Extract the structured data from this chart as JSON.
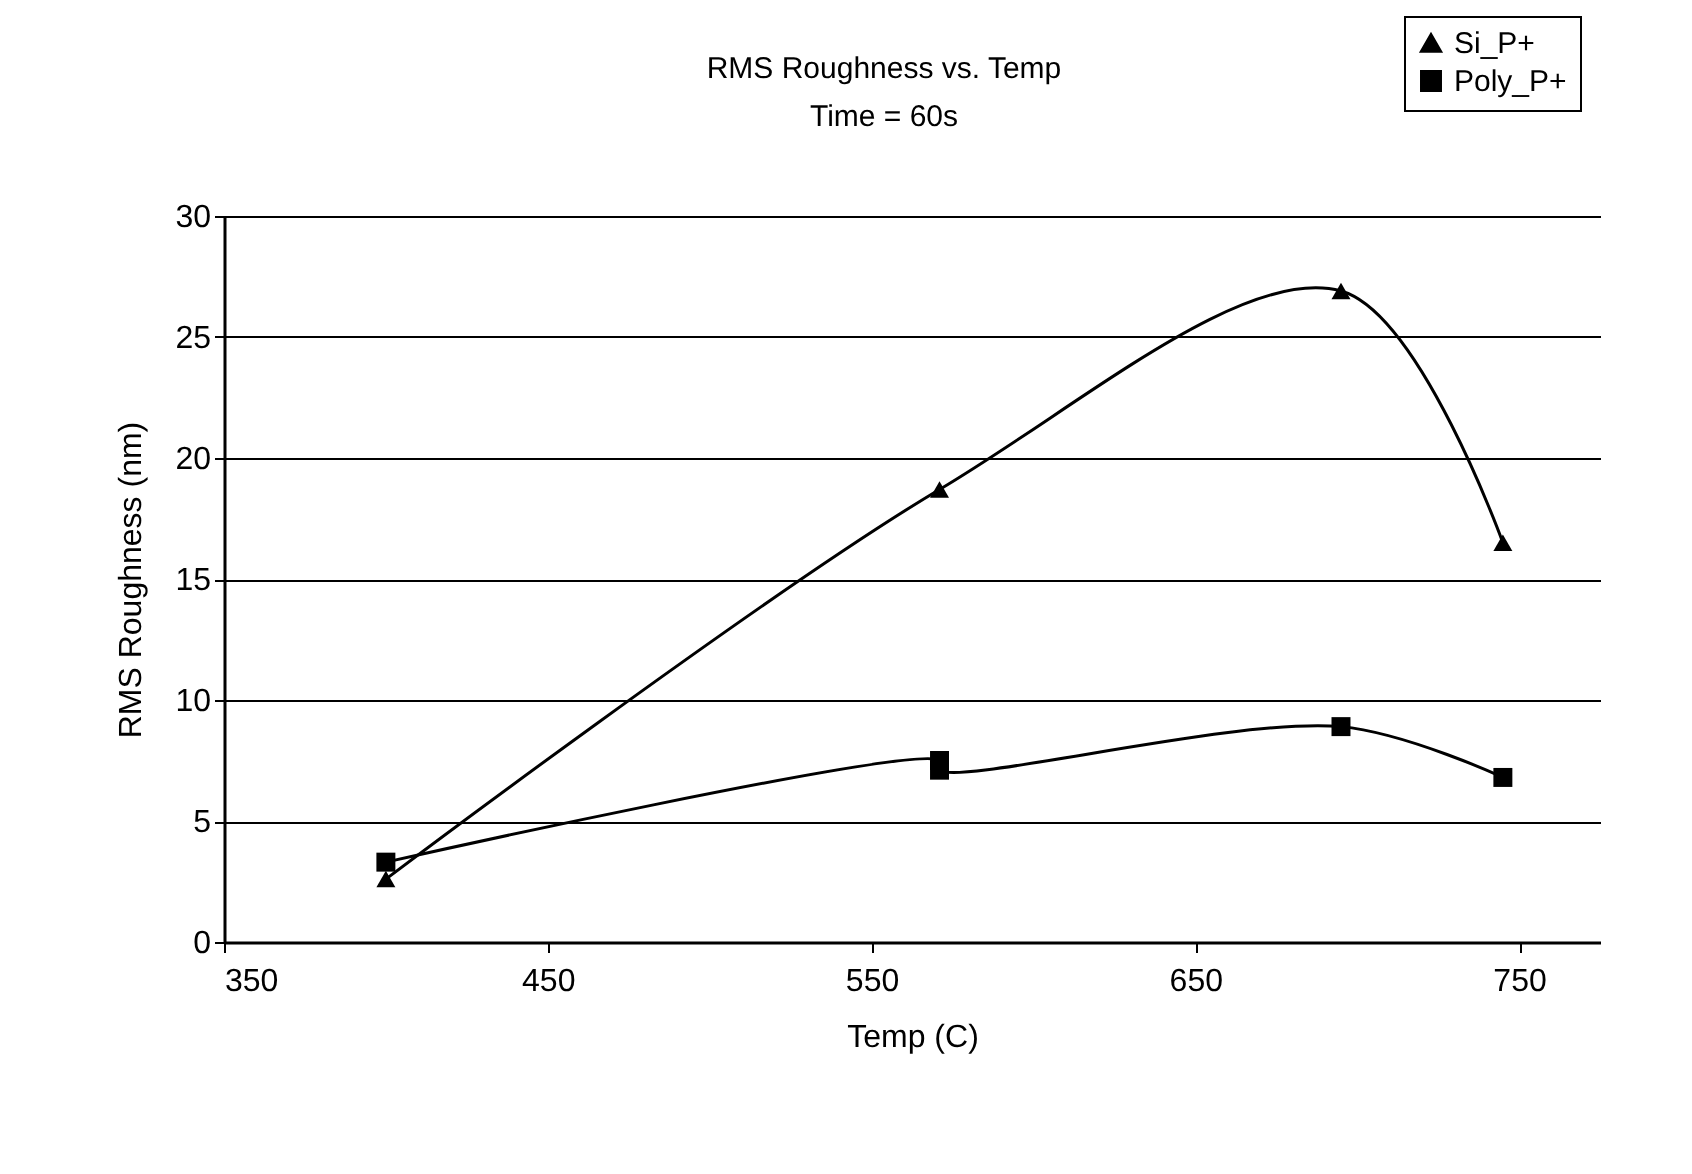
{
  "chart_data": {
    "type": "line",
    "title": "RMS Roughness vs. Temp",
    "subtitle": "Time = 60s",
    "xlabel": "Temp (C)",
    "ylabel": "RMS Roughness (nm)",
    "series": [
      {
        "name": "Si_P+",
        "color": "#000000",
        "marker": "triangle",
        "x": [
          400,
          571,
          695,
          745
        ],
        "values": [
          2.6,
          18.7,
          26.9,
          16.5
        ]
      },
      {
        "name": "Poly_P+",
        "color": "#000000",
        "marker": "square",
        "x": [
          400,
          571,
          571,
          695,
          745
        ],
        "values": [
          3.3,
          7.5,
          7.1,
          8.9,
          6.8
        ]
      }
    ],
    "xlim": [
      350,
      775
    ],
    "xticks": [
      350,
      450,
      550,
      650,
      750
    ],
    "ylim": [
      0,
      30
    ],
    "yticks": [
      0,
      5,
      10,
      15,
      20,
      25,
      30
    ],
    "grid": "y",
    "legend": "top right",
    "line_style": "solid"
  }
}
